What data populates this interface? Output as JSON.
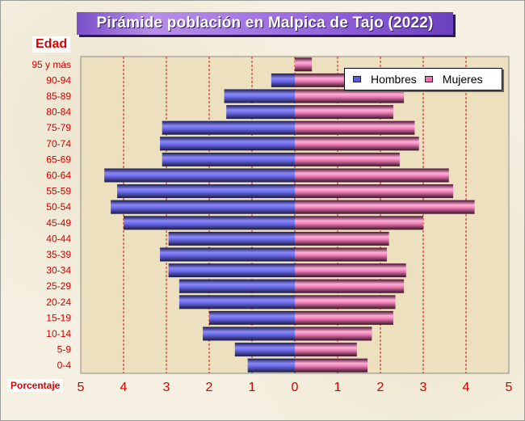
{
  "chart_data": {
    "type": "bar",
    "title": "Pirámide población en Malpica de Tajo (2022)",
    "ylabel": "Edad",
    "xlabel": "Porcentaje",
    "categories": [
      "95 y más",
      "90-94",
      "85-89",
      "80-84",
      "75-79",
      "70-74",
      "65-69",
      "60-64",
      "55-59",
      "50-54",
      "45-49",
      "40-44",
      "35-39",
      "30-34",
      "25-29",
      "20-24",
      "15-19",
      "10-14",
      "5-9",
      "0-4"
    ],
    "series": [
      {
        "name": "Hombres",
        "color": "#5a5ae0",
        "values": [
          0.0,
          0.55,
          1.65,
          1.6,
          3.1,
          3.15,
          3.1,
          4.45,
          4.15,
          4.3,
          4.0,
          2.95,
          3.15,
          2.95,
          2.7,
          2.7,
          2.0,
          2.15,
          1.4,
          1.1
        ]
      },
      {
        "name": "Mujeres",
        "color": "#f070b0",
        "values": [
          0.4,
          1.25,
          2.55,
          2.3,
          2.8,
          2.9,
          2.45,
          3.6,
          3.7,
          4.2,
          3.0,
          2.2,
          2.15,
          2.6,
          2.55,
          2.35,
          2.3,
          1.8,
          1.45,
          1.7
        ]
      }
    ],
    "xlim": [
      -5,
      5
    ],
    "xticks": [
      "5",
      "4",
      "3",
      "2",
      "1",
      "0",
      "1",
      "2",
      "3",
      "4",
      "5"
    ],
    "grid": true,
    "legend_position": "top-right"
  }
}
